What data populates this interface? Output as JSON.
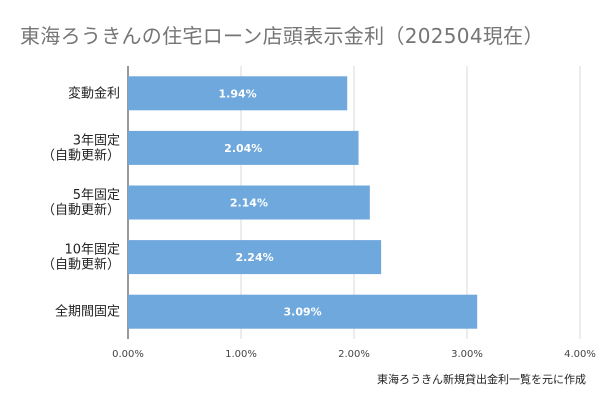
{
  "chart_data": {
    "type": "bar",
    "orientation": "horizontal",
    "title": "東海ろうきんの住宅ローン店頭表示金利（202504現在）",
    "source_note": "東海ろうきん新規貸出金利一覧を元に作成",
    "categories": [
      [
        "変動金利"
      ],
      [
        "3年固定",
        "（自動更新）"
      ],
      [
        "5年固定",
        "（自動更新）"
      ],
      [
        "10年固定",
        "（自動更新）"
      ],
      [
        "全期間固定"
      ]
    ],
    "values": [
      1.94,
      2.04,
      2.14,
      2.24,
      3.09
    ],
    "data_labels": [
      "1.94%",
      "2.04%",
      "2.14%",
      "2.24%",
      "3.09%"
    ],
    "x_ticks": [
      "0.00%",
      "1.00%",
      "2.00%",
      "3.00%",
      "4.00%"
    ],
    "xlim": [
      0,
      4
    ],
    "grid": "vertical",
    "bar_color": "#6fa8dc"
  }
}
